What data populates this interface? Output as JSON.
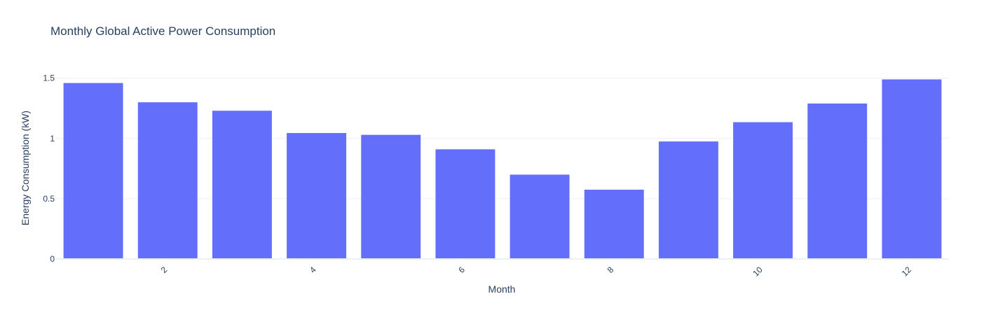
{
  "chart_data": {
    "type": "bar",
    "title": "Monthly Global Active Power Consumption",
    "xlabel": "Month",
    "ylabel": "Energy Consumption (kW)",
    "x": [
      1,
      2,
      3,
      4,
      5,
      6,
      7,
      8,
      9,
      10,
      11,
      12
    ],
    "values": [
      1.46,
      1.3,
      1.23,
      1.045,
      1.03,
      0.91,
      0.7,
      0.575,
      0.975,
      1.135,
      1.29,
      1.49
    ],
    "x_ticks": [
      2,
      4,
      6,
      8,
      10,
      12
    ],
    "x_tick_labels": [
      "2",
      "4",
      "6",
      "8",
      "10",
      "12"
    ],
    "y_ticks": [
      0,
      0.5,
      1,
      1.5
    ],
    "y_tick_labels": [
      "0",
      "0.5",
      "1",
      "1.5"
    ],
    "xlim": [
      0.5,
      12.5
    ],
    "ylim": [
      0,
      1.568
    ],
    "grid": true,
    "legend": "none",
    "bar_color": "#636efa",
    "grid_color": "#ebf0f8",
    "text_color": "#2a3f5f"
  }
}
